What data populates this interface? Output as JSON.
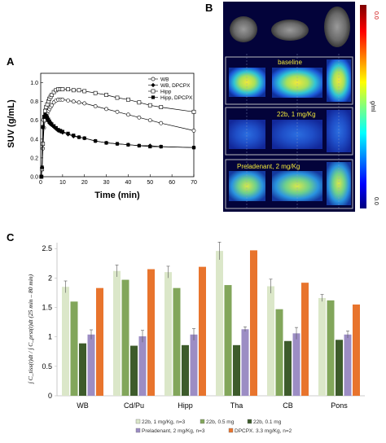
{
  "panels": {
    "a": "A",
    "b": "B",
    "c": "C"
  },
  "chart_data": [
    {
      "type": "line",
      "panel": "A",
      "xlabel": "Time (min)",
      "ylabel": "SUV (g/mL)",
      "xlim": [
        0,
        70
      ],
      "ylim": [
        0,
        1.1
      ],
      "xticks": [
        "0",
        "10",
        "20",
        "30",
        "40",
        "50",
        "60",
        "70"
      ],
      "yticks": [
        "0.0",
        "0.2",
        "0.4",
        "0.6",
        "0.8",
        "1.0"
      ],
      "legend_position": "top-right",
      "series": [
        {
          "name": "WB",
          "marker": "open-circle",
          "x": [
            0.3,
            0.6,
            1,
            1.5,
            2,
            2.5,
            3,
            3.5,
            4,
            4.5,
            5,
            6,
            7,
            8,
            9,
            10,
            12.5,
            15,
            17.5,
            20,
            25,
            30,
            35,
            40,
            45,
            50,
            55,
            70
          ],
          "y": [
            0.0,
            0.08,
            0.3,
            0.52,
            0.6,
            0.64,
            0.67,
            0.7,
            0.72,
            0.74,
            0.76,
            0.79,
            0.81,
            0.82,
            0.82,
            0.82,
            0.81,
            0.8,
            0.79,
            0.78,
            0.75,
            0.72,
            0.69,
            0.66,
            0.63,
            0.6,
            0.57,
            0.49
          ]
        },
        {
          "name": "WB, DPCPX",
          "marker": "filled-diamond",
          "x": [
            0.3,
            0.6,
            1,
            1.5,
            2,
            2.5,
            3,
            3.5,
            4,
            4.5,
            5,
            6,
            7,
            8,
            9,
            10,
            12.5,
            15,
            17.5,
            20,
            25,
            30,
            35,
            40,
            45,
            50,
            55,
            70
          ],
          "y": [
            0.0,
            0.1,
            0.52,
            0.62,
            0.64,
            0.63,
            0.61,
            0.59,
            0.57,
            0.56,
            0.55,
            0.53,
            0.51,
            0.49,
            0.48,
            0.47,
            0.45,
            0.43,
            0.42,
            0.41,
            0.38,
            0.36,
            0.35,
            0.34,
            0.33,
            0.33,
            0.32,
            0.31
          ]
        },
        {
          "name": "Hipp",
          "marker": "open-square",
          "x": [
            0.3,
            0.6,
            1,
            1.5,
            2,
            2.5,
            3,
            3.5,
            4,
            4.5,
            5,
            6,
            7,
            8,
            9,
            10,
            12.5,
            15,
            17.5,
            20,
            25,
            30,
            35,
            40,
            45,
            50,
            55,
            70
          ],
          "y": [
            0.0,
            0.08,
            0.35,
            0.6,
            0.7,
            0.74,
            0.77,
            0.8,
            0.83,
            0.85,
            0.87,
            0.9,
            0.92,
            0.93,
            0.93,
            0.93,
            0.93,
            0.92,
            0.92,
            0.91,
            0.89,
            0.87,
            0.84,
            0.82,
            0.79,
            0.76,
            0.74,
            0.69
          ]
        },
        {
          "name": "Hipp, DPCPX",
          "marker": "filled-square",
          "x": [
            0.3,
            0.6,
            1,
            1.5,
            2,
            2.5,
            3,
            3.5,
            4,
            4.5,
            5,
            6,
            7,
            8,
            9,
            10,
            12.5,
            15,
            17.5,
            20,
            25,
            30,
            35,
            40,
            45,
            50,
            55,
            70
          ],
          "y": [
            0.0,
            0.1,
            0.53,
            0.64,
            0.66,
            0.65,
            0.63,
            0.61,
            0.59,
            0.57,
            0.56,
            0.54,
            0.52,
            0.5,
            0.49,
            0.48,
            0.46,
            0.44,
            0.42,
            0.41,
            0.38,
            0.36,
            0.35,
            0.34,
            0.33,
            0.32,
            0.32,
            0.31
          ]
        }
      ]
    },
    {
      "type": "bar",
      "panel": "C",
      "ylabel": "∫ C_tiss(t)dt / ∫ C_prst(t)dt  (25 min – 80 min)",
      "ylim": [
        0,
        2.6
      ],
      "yticks": [
        "0",
        "0.5",
        "1",
        "1.5",
        "2",
        "2.5"
      ],
      "categories": [
        "WB",
        "Cd/Pu",
        "Hipp",
        "Tha",
        "CB",
        "Pons"
      ],
      "legend_position": "bottom",
      "series": [
        {
          "name": "22b, 1 mg/Kg, n=3",
          "color": "#dbe7c9",
          "values": [
            1.85,
            2.12,
            2.1,
            2.46,
            1.86,
            1.66
          ],
          "errors": [
            0.1,
            0.1,
            0.1,
            0.15,
            0.12,
            0.06
          ]
        },
        {
          "name": "22b, 0.5 mg",
          "color": "#82a65b",
          "values": [
            1.6,
            1.97,
            1.83,
            1.88,
            1.47,
            1.62
          ],
          "errors": [
            0,
            0,
            0,
            0,
            0,
            0
          ]
        },
        {
          "name": "22b, 0.1 mg",
          "color": "#3d5b2b",
          "values": [
            0.89,
            0.85,
            0.86,
            0.86,
            0.93,
            0.95
          ],
          "errors": [
            0,
            0,
            0,
            0,
            0,
            0
          ]
        },
        {
          "name": "Preladenant, 2 mg/Kg, n=3",
          "color": "#9c8dc4",
          "values": [
            1.04,
            1.01,
            1.04,
            1.13,
            1.06,
            1.04
          ],
          "errors": [
            0.08,
            0.1,
            0.1,
            0.04,
            0.1,
            0.06
          ]
        },
        {
          "name": "DPCPX. 3.3 mg/Kg, n=2",
          "color": "#e8742d",
          "values": [
            1.83,
            2.15,
            2.19,
            2.47,
            1.92,
            1.55
          ],
          "errors": [
            0,
            0,
            0,
            0,
            0,
            0
          ]
        }
      ]
    }
  ],
  "pet": {
    "labels": [
      "baseline",
      "22b, 1 mg/Kg",
      "Preladenant, 2 mg/Kg"
    ],
    "colorbar_ticks": [
      "0.0",
      "0.0"
    ],
    "colorbar_unit": "g/ml"
  }
}
